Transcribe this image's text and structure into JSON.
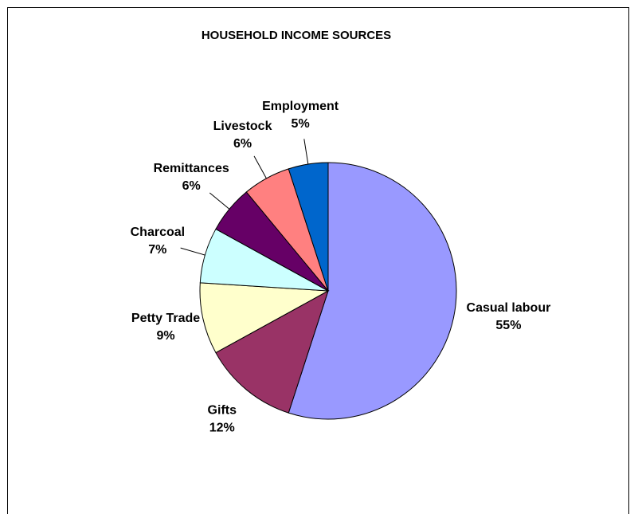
{
  "chart_data": {
    "type": "pie",
    "title": "HOUSEHOLD INCOME SOURCES",
    "categories": [
      "Casual labour",
      "Gifts",
      "Petty Trade",
      "Charcoal",
      "Remittances",
      "Livestock",
      "Employment"
    ],
    "values": [
      55,
      12,
      9,
      7,
      6,
      6,
      5
    ],
    "value_labels": [
      "55%",
      "12%",
      "9%",
      "7%",
      "6%",
      "6%",
      "5%"
    ],
    "colors": [
      "#9999ff",
      "#993366",
      "#ffffcc",
      "#ccffff",
      "#660066",
      "#ff8080",
      "#0066cc"
    ]
  }
}
